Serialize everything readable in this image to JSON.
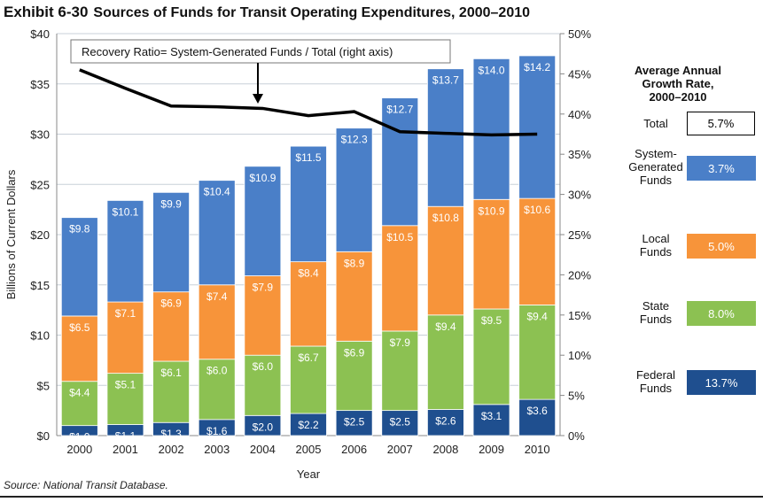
{
  "title": {
    "exhibit": "Exhibit 6-30",
    "text": "Sources of Funds for Transit Operating Expenditures, 2000–2010"
  },
  "source": "Source: National Transit Database.",
  "chart_data": {
    "type": "bar",
    "stacked": true,
    "categories": [
      "2000",
      "2001",
      "2002",
      "2003",
      "2004",
      "2005",
      "2006",
      "2007",
      "2008",
      "2009",
      "2010"
    ],
    "xlabel": "Year",
    "ylabel": "Billions of Current Dollars",
    "ylim": [
      0,
      40
    ],
    "yticks": [
      "$0",
      "$5",
      "$10",
      "$15",
      "$20",
      "$25",
      "$30",
      "$35",
      "$40"
    ],
    "y2lim": [
      0,
      50
    ],
    "y2ticks": [
      "0%",
      "5%",
      "10%",
      "15%",
      "20%",
      "25%",
      "30%",
      "35%",
      "40%",
      "45%",
      "50%"
    ],
    "grid": true,
    "series": [
      {
        "name": "Federal Funds",
        "color": "#1f4f8f",
        "values": [
          1.0,
          1.1,
          1.3,
          1.6,
          2.0,
          2.2,
          2.5,
          2.5,
          2.6,
          3.1,
          3.6
        ]
      },
      {
        "name": "State Funds",
        "color": "#8cc152",
        "values": [
          4.4,
          5.1,
          6.1,
          6.0,
          6.0,
          6.7,
          6.9,
          7.9,
          9.4,
          9.5,
          9.4
        ]
      },
      {
        "name": "Local Funds",
        "color": "#f7943a",
        "values": [
          6.5,
          7.1,
          6.9,
          7.4,
          7.9,
          8.4,
          8.9,
          10.5,
          10.8,
          10.9,
          10.6
        ]
      },
      {
        "name": "System-Generated Funds",
        "color": "#4a7fc8",
        "values": [
          9.8,
          10.1,
          9.9,
          10.4,
          10.9,
          11.5,
          12.3,
          12.7,
          13.7,
          14.0,
          14.2
        ]
      }
    ],
    "line": {
      "axis": "right",
      "color": "#000000",
      "values": [
        45.5,
        43.2,
        41.0,
        40.9,
        40.7,
        39.8,
        40.3,
        37.8,
        37.6,
        37.4,
        37.5
      ]
    },
    "annotation": "Recovery Ratio= System-Generated Funds / Total (right axis)",
    "legend": {
      "title": "Average Annual Growth Rate, 2000–2010",
      "items": [
        {
          "label": "Total",
          "value": "5.7%",
          "color": "#ffffff"
        },
        {
          "label": "System-Generated Funds",
          "value": "3.7%",
          "color": "#4a7fc8"
        },
        {
          "label": "Local Funds",
          "value": "5.0%",
          "color": "#f7943a"
        },
        {
          "label": "State Funds",
          "value": "8.0%",
          "color": "#8cc152"
        },
        {
          "label": "Federal Funds",
          "value": "13.7%",
          "color": "#1f4f8f"
        }
      ]
    }
  }
}
